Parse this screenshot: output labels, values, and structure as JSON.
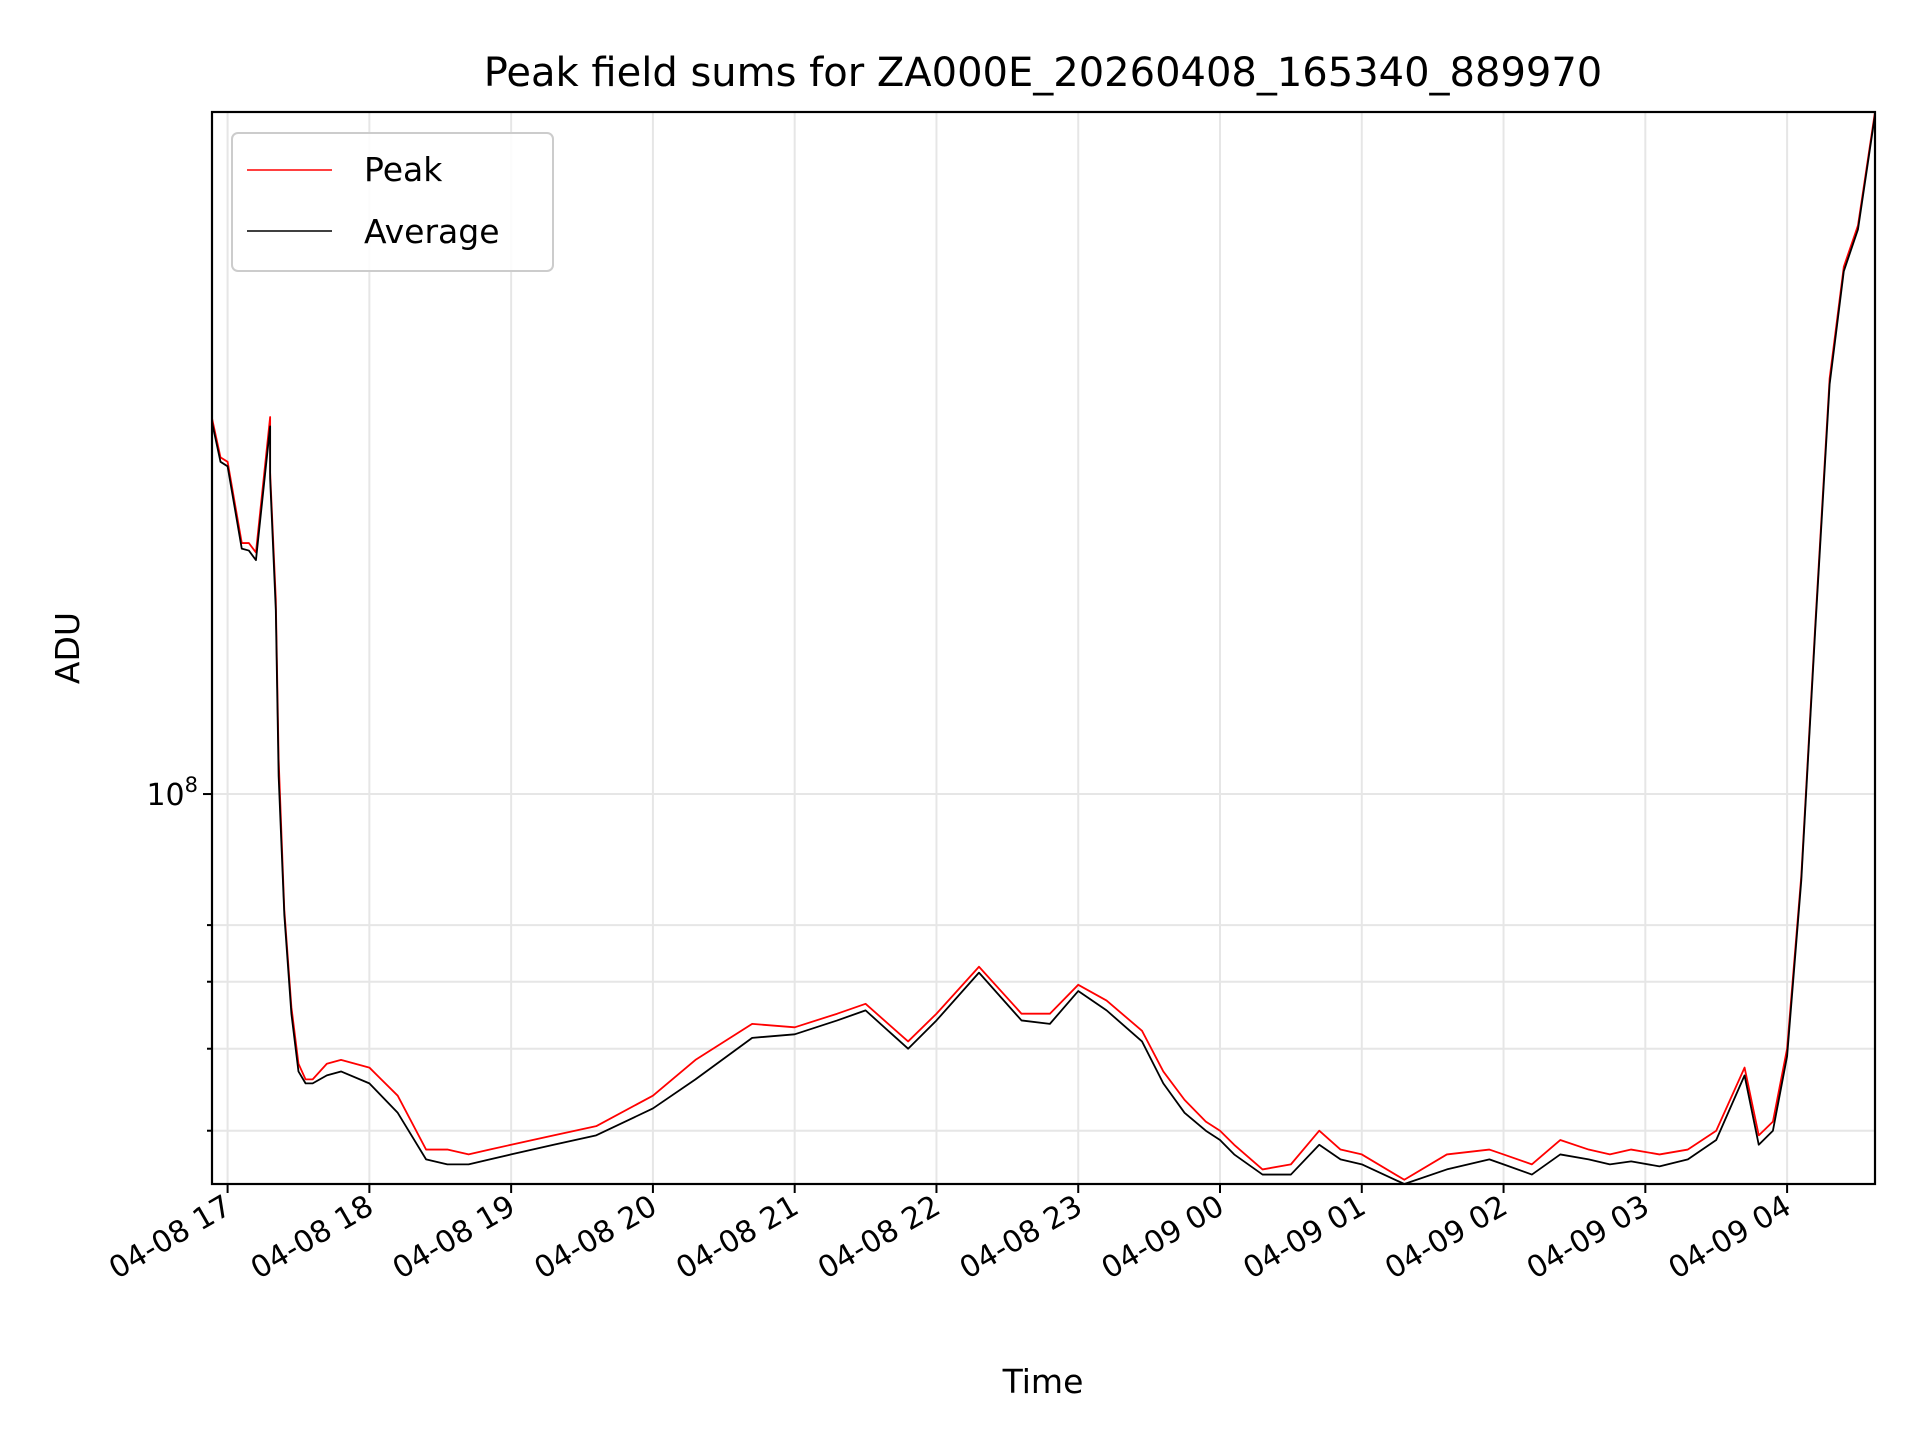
{
  "chart_data": {
    "type": "line",
    "title": "Peak field sums for ZA000E_20260408_165340_889970",
    "xlabel": "Time",
    "ylabel": "ADU",
    "yscale": "log",
    "x_units": "hours since 04-08 17:00",
    "xlim": [
      -0.11,
      11.62
    ],
    "ylim": [
      34600000,
      640000000
    ],
    "x_ticks": [
      {
        "value": 0,
        "label": "04-08 17"
      },
      {
        "value": 1,
        "label": "04-08 18"
      },
      {
        "value": 2,
        "label": "04-08 19"
      },
      {
        "value": 3,
        "label": "04-08 20"
      },
      {
        "value": 4,
        "label": "04-08 21"
      },
      {
        "value": 5,
        "label": "04-08 22"
      },
      {
        "value": 6,
        "label": "04-08 23"
      },
      {
        "value": 7,
        "label": "04-09 00"
      },
      {
        "value": 8,
        "label": "04-09 01"
      },
      {
        "value": 9,
        "label": "04-09 02"
      },
      {
        "value": 10,
        "label": "04-09 03"
      },
      {
        "value": 11,
        "label": "04-09 04"
      }
    ],
    "y_major_ticks": [
      {
        "value": 100000000,
        "base": "10",
        "exp": "8"
      }
    ],
    "y_minor_ticks": [
      40000000,
      50000000,
      60000000,
      70000000
    ],
    "grid": true,
    "legend_position": "top-left",
    "series": [
      {
        "name": "Peak",
        "color": "#ff0000",
        "x": [
          -0.11,
          -0.05,
          0.0,
          0.1,
          0.15,
          0.2,
          0.3,
          0.3,
          0.34,
          0.36,
          0.4,
          0.45,
          0.5,
          0.55,
          0.6,
          0.7,
          0.8,
          1.0,
          1.2,
          1.4,
          1.55,
          1.7,
          1.85,
          2.0,
          2.3,
          2.6,
          3.0,
          3.3,
          3.7,
          4.0,
          4.3,
          4.5,
          4.8,
          5.0,
          5.3,
          5.6,
          5.8,
          6.0,
          6.2,
          6.45,
          6.6,
          6.75,
          6.9,
          7.0,
          7.1,
          7.3,
          7.5,
          7.7,
          7.85,
          8.0,
          8.3,
          8.6,
          8.9,
          9.0,
          9.2,
          9.4,
          9.6,
          9.75,
          9.9,
          10.1,
          10.3,
          10.5,
          10.7,
          10.8,
          10.9,
          11.0,
          11.1,
          11.2,
          11.3,
          11.4,
          11.5,
          11.62
        ],
        "y": [
          278000000,
          250000000,
          247000000,
          198000000,
          198000000,
          193000000,
          279000000,
          240000000,
          170000000,
          110000000,
          73000000,
          56000000,
          48000000,
          46000000,
          46000000,
          48000000,
          48500000,
          47500000,
          44000000,
          38000000,
          38000000,
          37500000,
          38000000,
          38500000,
          39500000,
          40500000,
          44000000,
          48500000,
          53500000,
          53000000,
          55000000,
          56500000,
          51000000,
          55000000,
          62500000,
          55000000,
          55000000,
          59500000,
          57000000,
          52500000,
          47000000,
          43500000,
          41000000,
          40000000,
          38500000,
          36000000,
          36500000,
          40000000,
          38000000,
          37500000,
          35000000,
          37500000,
          38000000,
          37500000,
          36500000,
          39000000,
          38000000,
          37500000,
          38000000,
          37500000,
          38000000,
          40000000,
          47500000,
          39500000,
          41000000,
          50000000,
          80000000,
          160000000,
          310000000,
          420000000,
          470000000,
          640000000
        ]
      },
      {
        "name": "Average",
        "color": "#000000",
        "x": [
          -0.11,
          -0.05,
          0.0,
          0.1,
          0.15,
          0.2,
          0.3,
          0.3,
          0.34,
          0.36,
          0.4,
          0.45,
          0.5,
          0.55,
          0.6,
          0.7,
          0.8,
          1.0,
          1.2,
          1.4,
          1.55,
          1.7,
          1.85,
          2.0,
          2.3,
          2.6,
          3.0,
          3.3,
          3.7,
          4.0,
          4.3,
          4.5,
          4.8,
          5.0,
          5.3,
          5.6,
          5.8,
          6.0,
          6.2,
          6.45,
          6.6,
          6.75,
          6.9,
          7.0,
          7.1,
          7.3,
          7.5,
          7.7,
          7.85,
          8.0,
          8.3,
          8.6,
          8.9,
          9.0,
          9.2,
          9.4,
          9.6,
          9.75,
          9.9,
          10.1,
          10.3,
          10.5,
          10.7,
          10.8,
          10.9,
          11.0,
          11.1,
          11.2,
          11.3,
          11.4,
          11.5,
          11.62
        ],
        "y": [
          275000000,
          247000000,
          244000000,
          195000000,
          194000000,
          189000000,
          272000000,
          236000000,
          165000000,
          105000000,
          72000000,
          55000000,
          47000000,
          45500000,
          45500000,
          46500000,
          47000000,
          45500000,
          42000000,
          37000000,
          36500000,
          36500000,
          37000000,
          37500000,
          38500000,
          39500000,
          42500000,
          46000000,
          51500000,
          52000000,
          54000000,
          55500000,
          50000000,
          54000000,
          61500000,
          54000000,
          53500000,
          58500000,
          55500000,
          51000000,
          45500000,
          42000000,
          40000000,
          39000000,
          37500000,
          35500000,
          35500000,
          38500000,
          37000000,
          36500000,
          34600000,
          36000000,
          37000000,
          36500000,
          35500000,
          37500000,
          37000000,
          36500000,
          36800000,
          36300000,
          37000000,
          39000000,
          46500000,
          38500000,
          40000000,
          49000000,
          79000000,
          158000000,
          305000000,
          415000000,
          465000000,
          635000000
        ]
      }
    ]
  }
}
